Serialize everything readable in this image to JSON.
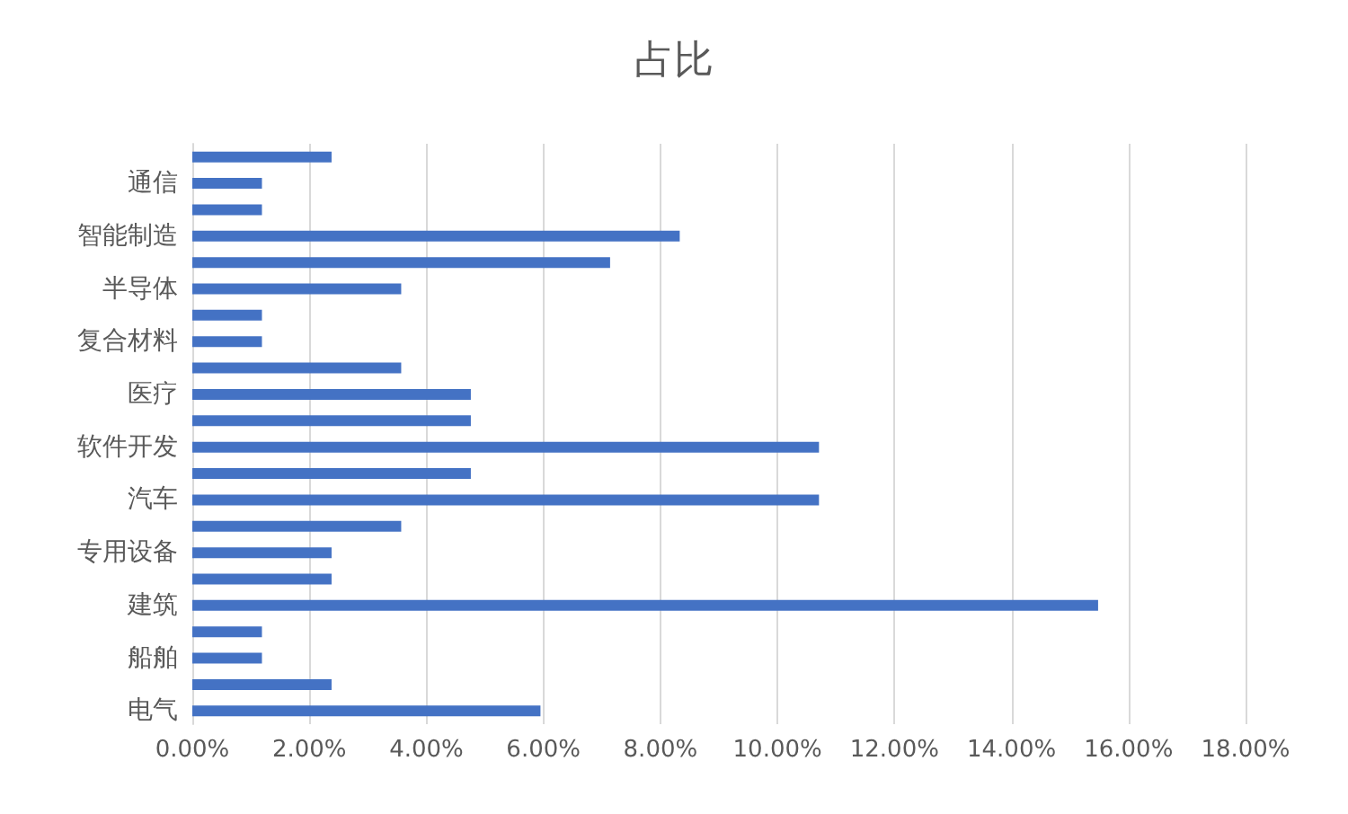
{
  "chart_data": {
    "type": "bar",
    "orientation": "horizontal",
    "title": "占比",
    "categories": [
      null,
      "通信",
      null,
      "智能制造",
      null,
      "半导体",
      null,
      "复合材料",
      null,
      "医疗",
      null,
      "软件开发",
      null,
      "汽车",
      null,
      "专用设备",
      null,
      "建筑",
      null,
      "船舶",
      null,
      "电气"
    ],
    "values": [
      2.38,
      1.19,
      1.19,
      8.33,
      7.14,
      3.57,
      1.19,
      1.19,
      3.57,
      4.76,
      4.76,
      10.71,
      4.76,
      10.71,
      3.57,
      2.38,
      2.38,
      15.48,
      1.19,
      1.19,
      2.38,
      5.95
    ],
    "color": "#4472c4",
    "xlim": [
      0,
      18
    ],
    "xticks": [
      {
        "value": 0,
        "label": "0.00%"
      },
      {
        "value": 2,
        "label": "2.00%"
      },
      {
        "value": 4,
        "label": "4.00%"
      },
      {
        "value": 6,
        "label": "6.00%"
      },
      {
        "value": 8,
        "label": "8.00%"
      },
      {
        "value": 10,
        "label": "10.00%"
      },
      {
        "value": 12,
        "label": "12.00%"
      },
      {
        "value": 14,
        "label": "14.00%"
      },
      {
        "value": 16,
        "label": "16.00%"
      },
      {
        "value": 18,
        "label": "18.00%"
      }
    ],
    "grid": "x"
  }
}
